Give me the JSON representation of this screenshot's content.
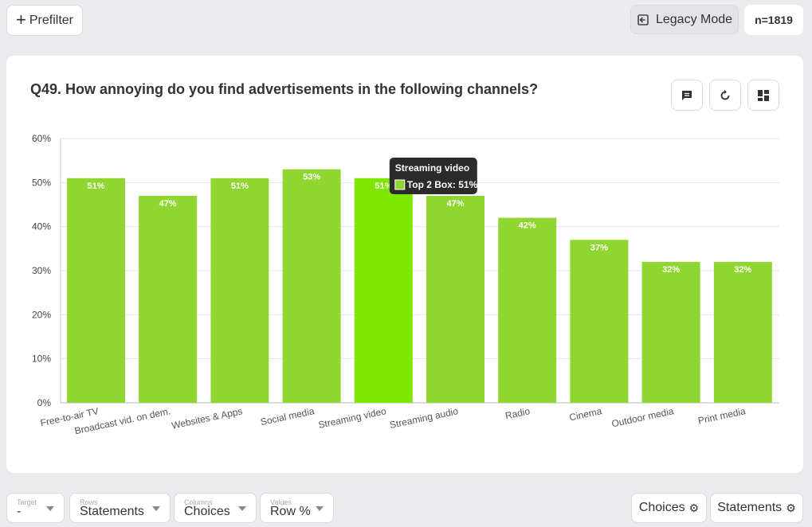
{
  "toolbar": {
    "prefilter_label": "Prefilter",
    "legacy_label": "Legacy Mode",
    "n_label": "n=1819"
  },
  "question": {
    "title": "Q49. How annoying do you find advertisements in the following channels?"
  },
  "icons": [
    "comment-icon",
    "refresh-icon",
    "layout-icon",
    "plus-icon",
    "exit-icon",
    "gear-icon"
  ],
  "colors": {
    "bar": "#8fd630",
    "bar_highlight": "#7fe600",
    "tooltip_bg": "#2b2b2b"
  },
  "tooltip": {
    "title": "Streaming video",
    "series": "Top 2 Box: 51%"
  },
  "chart_data": {
    "type": "bar",
    "categories": [
      "Free-to-air TV",
      "Broadcast vid. on dem.",
      "Websites & Apps",
      "Social media",
      "Streaming video",
      "Streaming audio",
      "Radio",
      "Cinema",
      "Outdoor media",
      "Print media"
    ],
    "values": [
      51,
      47,
      51,
      53,
      51,
      47,
      42,
      37,
      32,
      32
    ],
    "data_labels": [
      "51%",
      "47%",
      "51%",
      "53%",
      "51%",
      "47%",
      "42%",
      "37%",
      "32%",
      "32%"
    ],
    "ylim": [
      0,
      60
    ],
    "yticks": [
      "0%",
      "10%",
      "20%",
      "30%",
      "40%",
      "50%",
      "60%"
    ],
    "grid": true,
    "highlighted_index": 4
  },
  "controls": {
    "target": {
      "label": "Target",
      "value": "-"
    },
    "rows": {
      "label": "Rows",
      "value": "Statements"
    },
    "columns": {
      "label": "Columns",
      "value": "Choices"
    },
    "values": {
      "label": "Values",
      "value": "Row %"
    }
  },
  "right_buttons": {
    "choices": "Choices",
    "statements": "Statements"
  }
}
